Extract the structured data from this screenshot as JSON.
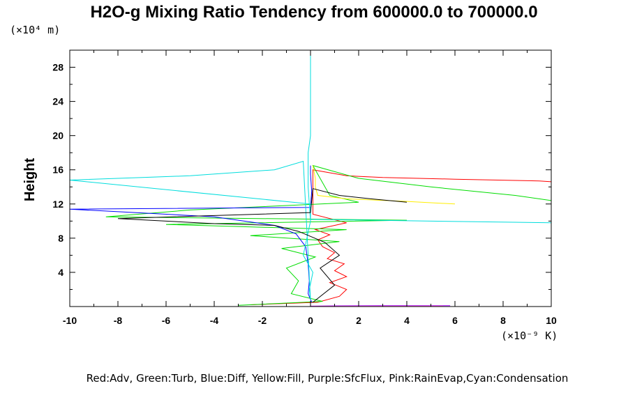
{
  "chart_data": {
    "type": "line",
    "title": "H2O-g Mixing Ratio Tendency from 600000.0 to 700000.0",
    "xlabel": "",
    "ylabel": "Height",
    "x_units": "(×10⁻⁹ K)",
    "y_units": "(×10⁴ m)",
    "xlim": [
      -10,
      10
    ],
    "ylim": [
      0,
      30
    ],
    "x_ticks": [
      "-10",
      "-8",
      "-6",
      "-4",
      "-2",
      "0",
      "2",
      "4",
      "6",
      "8",
      "10"
    ],
    "y_ticks": [
      "4",
      "8",
      "12",
      "16",
      "20",
      "24",
      "28"
    ],
    "grid": false,
    "legend_text": "Red:Adv, Green:Turb, Blue:Diff, Yellow:Fill, Purple:SfcFlux, Pink:RainEvap,Cyan:Condensation",
    "series": [
      {
        "color": "#ff0000",
        "x": [
          -2.5,
          0.3,
          1.2,
          1.5,
          0.8,
          1.5,
          1.0,
          1.4,
          0.7,
          1.0,
          0.5,
          0.3,
          0.8,
          0.2,
          1.5,
          0.1,
          0.1,
          1.5,
          3,
          6,
          9.5,
          10
        ],
        "y": [
          0.2,
          0.5,
          1.2,
          2.0,
          2.8,
          3.5,
          4.2,
          5.0,
          5.6,
          6.3,
          7.0,
          7.8,
          8.4,
          9.0,
          9.8,
          10.8,
          16.0,
          15.3,
          15.1,
          14.9,
          14.7,
          14.6
        ]
      },
      {
        "color": "#00dd00",
        "x": [
          -3,
          0.5,
          -0.8,
          -0.5,
          -1,
          0.2,
          -1.2,
          1.2,
          -2.5,
          1.5,
          -6,
          4,
          -8.5,
          -5,
          2,
          0.8,
          0.1,
          2,
          5,
          8.5,
          10
        ],
        "y": [
          0.15,
          0.6,
          1.5,
          3.0,
          4.5,
          5.8,
          6.8,
          7.6,
          8.3,
          9.0,
          9.6,
          10.1,
          10.5,
          11.3,
          12.2,
          13.0,
          16.5,
          15.0,
          14.0,
          13.0,
          12.4
        ]
      },
      {
        "color": "#0000ff",
        "x": [
          0.05,
          -0.1,
          -0.05,
          -0.1,
          -0.2,
          -0.6,
          -1.5,
          -4,
          -10,
          0,
          0.05,
          0,
          0
        ],
        "y": [
          0.5,
          1.5,
          3.0,
          5.0,
          7.0,
          8.5,
          9.5,
          10.5,
          11.4,
          11.6,
          13.5,
          15.5,
          16.5
        ]
      },
      {
        "color": "#ffee00",
        "x": [
          0.1,
          0.2,
          0.2,
          0.3,
          1.5,
          4,
          6
        ],
        "y": [
          16.5,
          15.0,
          14.0,
          13.0,
          12.6,
          12.3,
          12.0
        ]
      },
      {
        "color": "#aa00ff",
        "x": [
          0,
          1,
          3,
          5.8
        ],
        "y": [
          0.05,
          0.08,
          0.1,
          0.1
        ]
      },
      {
        "color": "#ff66cc",
        "x": [
          0,
          2,
          5.5
        ],
        "y": [
          0.02,
          0.03,
          0.05
        ]
      },
      {
        "color": "#00dddd",
        "x": [
          0,
          0,
          0,
          -0.1,
          -0.1,
          0,
          -0.3,
          0.1,
          -0.05,
          0,
          -0.3,
          -1.5,
          -5,
          -10,
          0,
          0,
          0,
          10
        ],
        "y": [
          30,
          25,
          20,
          18,
          14,
          10,
          6,
          4,
          2,
          0.8,
          17.0,
          16.0,
          15.3,
          14.8,
          12,
          10.5,
          10.2,
          9.8
        ]
      },
      {
        "color": "#000000",
        "x": [
          0.1,
          1.0,
          0.4,
          1.2,
          0.6,
          -0.5,
          -1.5,
          -4,
          -8,
          0,
          0.1,
          1.2,
          2.5,
          4
        ],
        "y": [
          0.5,
          2.5,
          4.5,
          6.0,
          7.5,
          8.8,
          9.5,
          9.7,
          10.3,
          11.0,
          13.8,
          13.0,
          12.6,
          12.2
        ]
      }
    ]
  }
}
